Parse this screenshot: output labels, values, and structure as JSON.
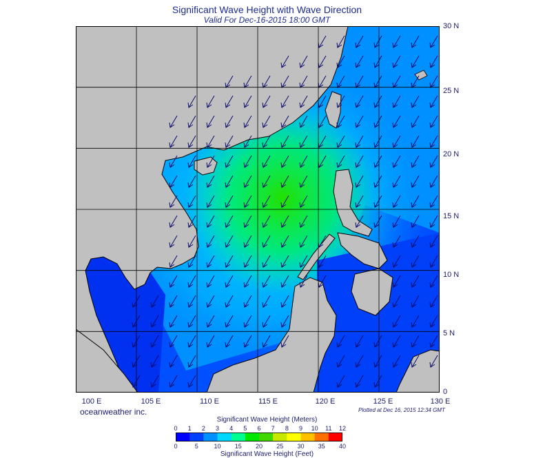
{
  "header": {
    "title": "Significant Wave Height with Wave Direction",
    "subtitle": "Valid For Dec-16-2015 18:00 GMT"
  },
  "map": {
    "lat_labels": [
      "30 N",
      "25 N",
      "20 N",
      "15 N",
      "10 N",
      "5 N",
      "0"
    ],
    "lon_labels": [
      "100 E",
      "105 E",
      "110 E",
      "115 E",
      "120 E",
      "125 E",
      "130 E"
    ],
    "lat_range": [
      0,
      30
    ],
    "lon_range": [
      100,
      130
    ],
    "grid": true,
    "land_color": "#c0c0c0",
    "arrow_color": "#0b0b6e",
    "prevailing_wave_direction": "southwestward"
  },
  "footer": {
    "credit": "oceanweather inc.",
    "plotted": "Plotted at Dec 16, 2015 12:34 GMT"
  },
  "colorbar": {
    "title_top": "Significant Wave Height (Meters)",
    "title_bottom": "Significant Wave Height (Feet)",
    "meters_ticks": [
      "0",
      "1",
      "2",
      "3",
      "4",
      "5",
      "6",
      "7",
      "8",
      "9",
      "10",
      "11",
      "12"
    ],
    "feet_ticks": [
      "0",
      "5",
      "10",
      "15",
      "20",
      "25",
      "30",
      "35",
      "40"
    ],
    "colors": [
      "#0000ff",
      "#0040ff",
      "#0090ff",
      "#00d8ff",
      "#00ff90",
      "#00e800",
      "#40d800",
      "#c8e800",
      "#ffff00",
      "#ffc000",
      "#ff7000",
      "#ff0000"
    ]
  }
}
